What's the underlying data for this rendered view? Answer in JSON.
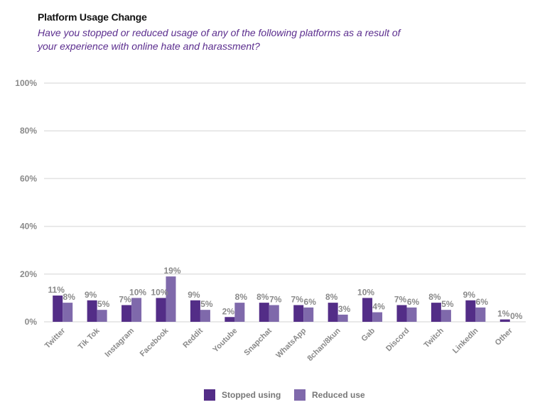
{
  "title": "Platform Usage Change",
  "subtitle": "Have you stopped or reduced usage of any of the following platforms as a result of your experience with online hate and harassment?",
  "colors": {
    "stopped": "#532d87",
    "reduced": "#7f69ab",
    "grid": "#e2e2e2",
    "text": "#8a8a8a"
  },
  "chart_data": {
    "type": "bar",
    "title": "Platform Usage Change",
    "subtitle": "Have you stopped or reduced usage of any of the following platforms as a result of your experience with online hate and harassment?",
    "xlabel": "",
    "ylabel": "",
    "ylim": [
      0,
      100
    ],
    "grid": true,
    "yticks": [
      0,
      20,
      40,
      60,
      80,
      100
    ],
    "ytick_labels": [
      "0%",
      "20%",
      "40%",
      "60%",
      "80%",
      "100%"
    ],
    "categories": [
      "Twitter",
      "Tik Tok",
      "Instagram",
      "Facebook",
      "Reddit",
      "Youtube",
      "Snapchat",
      "WhatsApp",
      "8chan/8kun",
      "Gab",
      "Discord",
      "Twitch",
      "LinkedIn",
      "Other"
    ],
    "series": [
      {
        "name": "Stopped using",
        "values": [
          11,
          9,
          7,
          10,
          9,
          2,
          8,
          7,
          8,
          10,
          7,
          8,
          9,
          1
        ],
        "labels": [
          "11%",
          "9%",
          "7%",
          "10%",
          "9%",
          "2%",
          "8%",
          "7%",
          "8%",
          "10%",
          "7%",
          "8%",
          "9%",
          "1%"
        ]
      },
      {
        "name": "Reduced use",
        "values": [
          8,
          5,
          10,
          19,
          5,
          8,
          7,
          6,
          3,
          4,
          6,
          5,
          6,
          0
        ],
        "labels": [
          "8%",
          "5%",
          "10%",
          "19%",
          "5%",
          "8%",
          "7%",
          "6%",
          "3%",
          "4%",
          "6%",
          "5%",
          "6%",
          "0%"
        ]
      }
    ],
    "legend": {
      "position": "bottom",
      "entries": [
        "Stopped using",
        "Reduced use"
      ]
    }
  }
}
